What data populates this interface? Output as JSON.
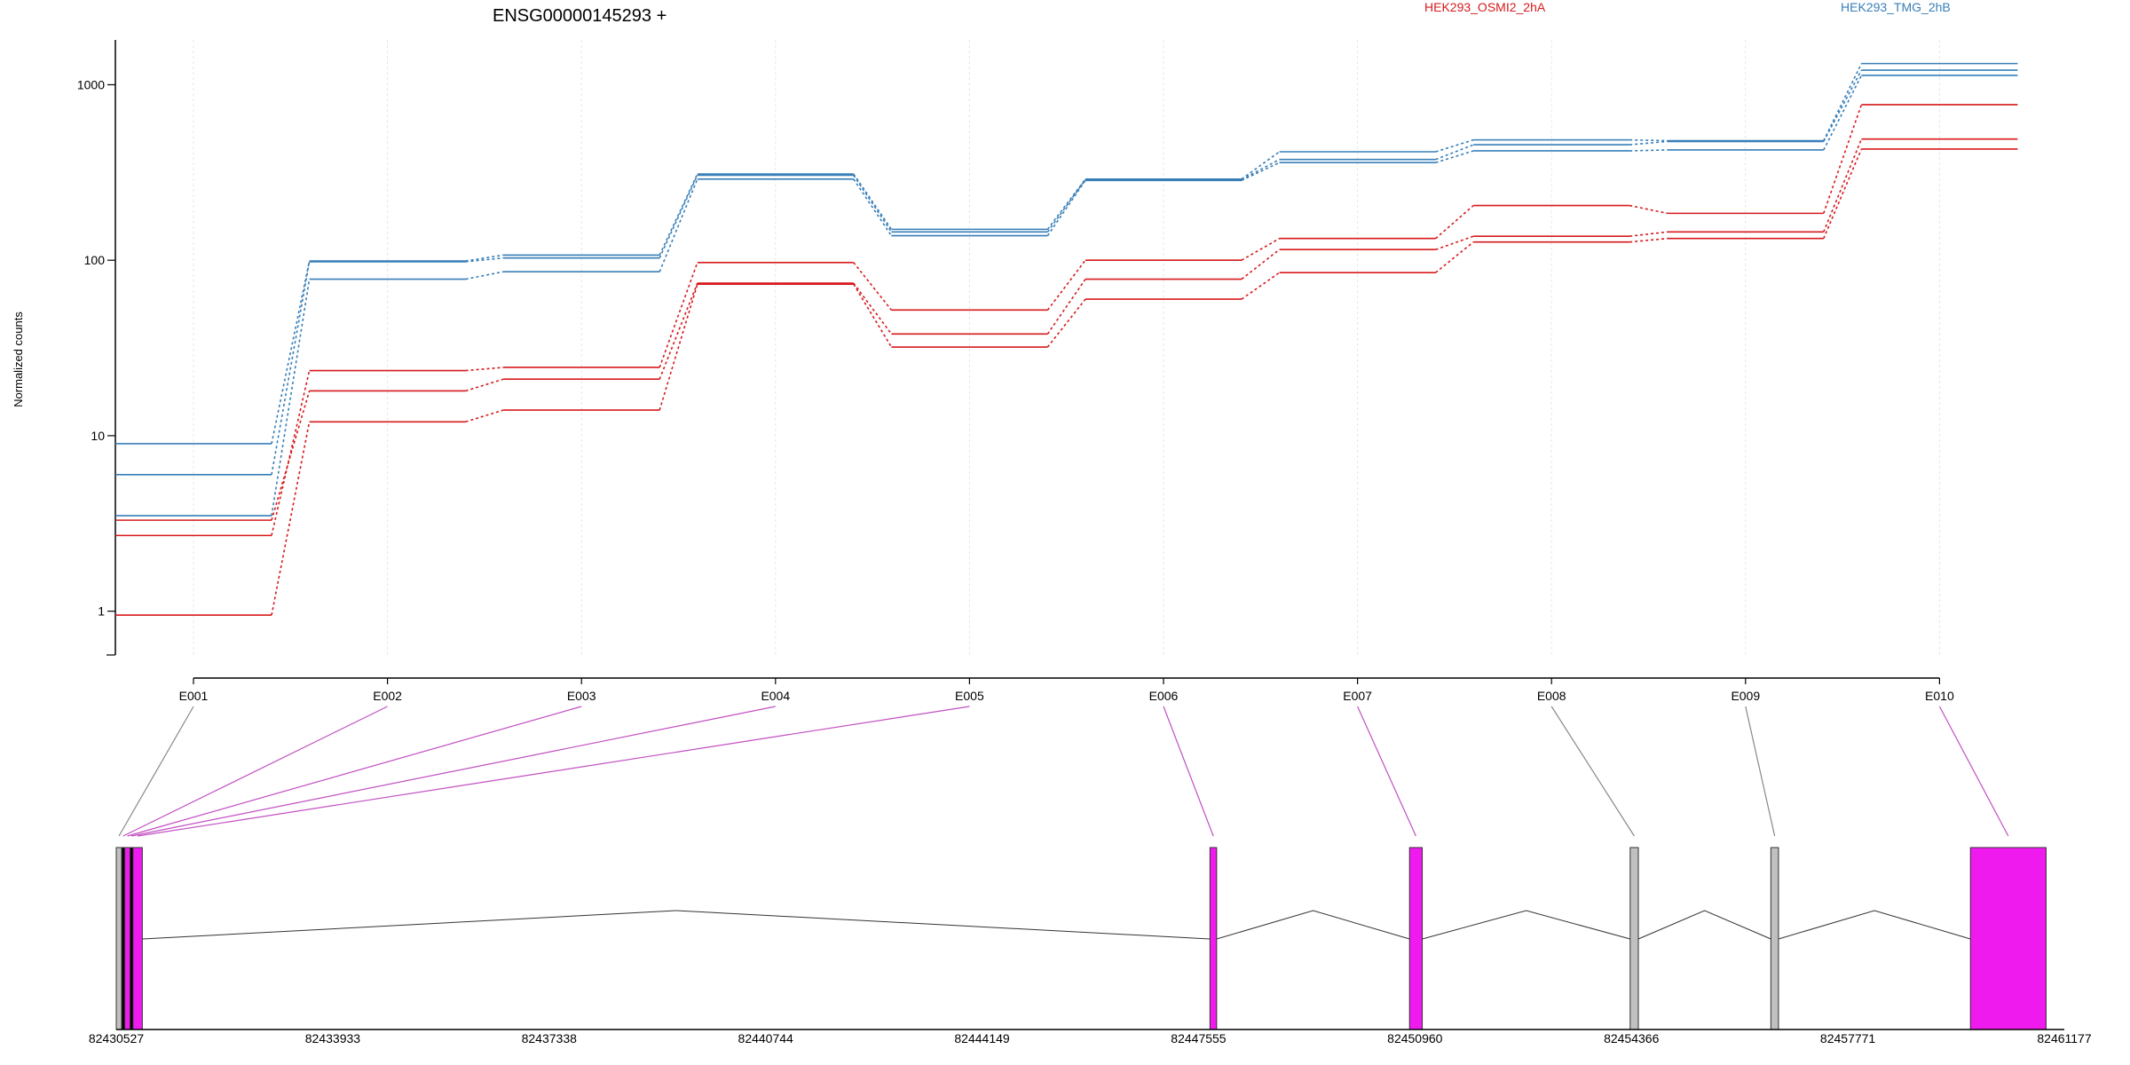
{
  "chart_data": [
    {
      "type": "line",
      "title": "ENSG00000145293 +",
      "xlabel": "",
      "ylabel": "Normalized counts",
      "y_scale": "log",
      "ylim": [
        0.55,
        1800
      ],
      "y_ticks": [
        1,
        10,
        100,
        1000
      ],
      "y_tick_labels": [
        "1",
        "10",
        "100",
        "1000"
      ],
      "categories": [
        "E001",
        "E002",
        "E003",
        "E004",
        "E005",
        "E006",
        "E007",
        "E008",
        "E009",
        "E010"
      ],
      "grid": "vertical",
      "legend_position": "top-right",
      "series": [
        {
          "name": "HEK293_OSMI2_2hA",
          "color": "#d7191c",
          "values": [
            2.7,
            23.5,
            24.5,
            97,
            52,
            100,
            133,
            205,
            185,
            770
          ]
        },
        {
          "name": "HEK293_OSMI2_2hA",
          "color": "#d7191c",
          "values": [
            3.3,
            18,
            21,
            74,
            38,
            78,
            115,
            137,
            145,
            490
          ]
        },
        {
          "name": "HEK293_OSMI2_2hA",
          "color": "#d7191c",
          "values": [
            0.95,
            12,
            14,
            73,
            32,
            60,
            85,
            127,
            133,
            430
          ]
        },
        {
          "name": "HEK293_TMG_2hB",
          "color": "#377eb8",
          "values": [
            9,
            99,
            107,
            310,
            150,
            290,
            415,
            485,
            480,
            1320
          ]
        },
        {
          "name": "HEK293_TMG_2hB",
          "color": "#377eb8",
          "values": [
            6,
            98,
            103,
            305,
            145,
            288,
            375,
            455,
            475,
            1210
          ]
        },
        {
          "name": "HEK293_TMG_2hB",
          "color": "#377eb8",
          "values": [
            3.5,
            78,
            86,
            290,
            138,
            285,
            360,
            420,
            425,
            1130
          ]
        }
      ]
    },
    {
      "type": "gene_model",
      "x_ticks": [
        82430527,
        82433933,
        82437338,
        82440744,
        82444149,
        82447555,
        82450960,
        82454366,
        82457771,
        82461177
      ],
      "x_tick_labels": [
        "82430527",
        "82433933",
        "82437338",
        "82440744",
        "82444149",
        "82447555",
        "82450960",
        "82454366",
        "82457771",
        "82461177"
      ],
      "xlim": [
        82430527,
        82461177
      ],
      "exons": [
        {
          "id": "E001",
          "start": 82430527,
          "end": 82430612,
          "color": "#c0c0c0",
          "tested": false
        },
        {
          "id": "E002",
          "start": 82430612,
          "end": 82430660,
          "color": "#000000",
          "tested": true
        },
        {
          "id": "E003",
          "start": 82430660,
          "end": 82430745,
          "color": "#ee1aee",
          "tested": true
        },
        {
          "id": "E004",
          "start": 82430745,
          "end": 82430790,
          "color": "#000000",
          "tested": true
        },
        {
          "id": "E005",
          "start": 82430790,
          "end": 82430937,
          "color": "#ee1aee",
          "tested": true
        },
        {
          "id": "E006",
          "start": 82447735,
          "end": 82447840,
          "color": "#ee1aee",
          "tested": true
        },
        {
          "id": "E007",
          "start": 82450875,
          "end": 82451075,
          "color": "#ee1aee",
          "tested": true
        },
        {
          "id": "E008",
          "start": 82454346,
          "end": 82454475,
          "color": "#c0c0c0",
          "tested": false
        },
        {
          "id": "E009",
          "start": 82456560,
          "end": 82456680,
          "color": "#c0c0c0",
          "tested": false
        },
        {
          "id": "E010",
          "start": 82459700,
          "end": 82460890,
          "color": "#ee1aee",
          "tested": true
        }
      ]
    }
  ],
  "legend": [
    {
      "label": "HEK293_OSMI2_2hA",
      "color": "#d7191c"
    },
    {
      "label": "HEK293_TMG_2hB",
      "color": "#377eb8"
    }
  ]
}
